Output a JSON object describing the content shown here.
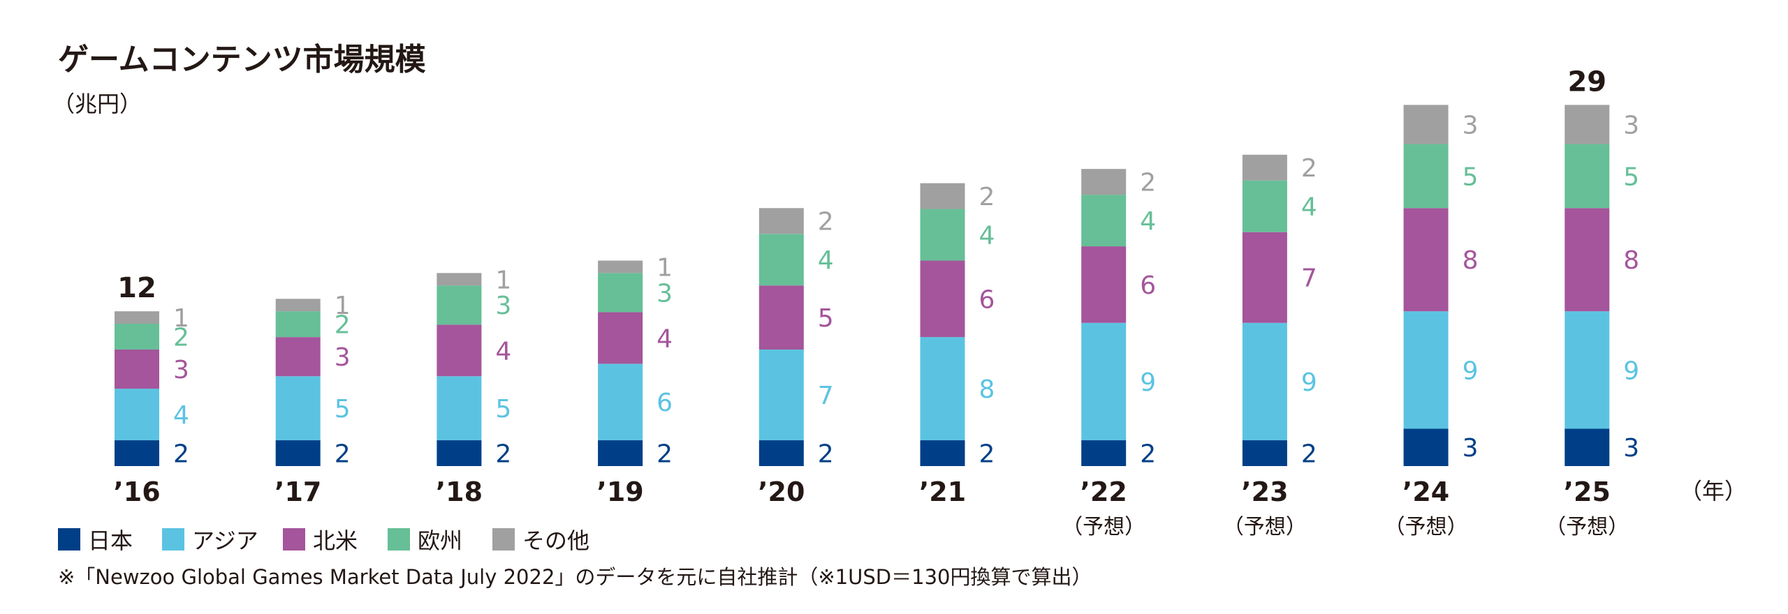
{
  "chart_data": {
    "type": "bar",
    "stacked": true,
    "title": "ゲームコンテンツ市場規模",
    "unit": "（兆円）",
    "x_unit": "（年）",
    "categories": [
      "’16",
      "’17",
      "’18",
      "’19",
      "’20",
      "’21",
      "’22",
      "’23",
      "’24",
      "’25"
    ],
    "forecast": [
      false,
      false,
      false,
      false,
      false,
      false,
      true,
      true,
      true,
      true
    ],
    "forecast_label": "（予想）",
    "totals": [
      {
        "index": 0,
        "label": "12"
      },
      {
        "index": 9,
        "label": "29"
      }
    ],
    "series": [
      {
        "name": "日本",
        "color": "#003f87",
        "values": [
          2,
          2,
          2,
          2,
          2,
          2,
          2,
          2,
          3,
          3
        ],
        "heights": [
          1.45,
          1.45,
          1.45,
          1.45,
          1.45,
          1.45,
          1.45,
          1.45,
          2.1,
          2.1
        ]
      },
      {
        "name": "アジア",
        "color": "#5bc3e1",
        "values": [
          4,
          5,
          5,
          6,
          7,
          8,
          9,
          9,
          9,
          9
        ],
        "heights": [
          2.9,
          3.6,
          3.6,
          4.3,
          5.1,
          5.8,
          6.6,
          6.6,
          6.6,
          6.6
        ]
      },
      {
        "name": "北米",
        "color": "#a4559b",
        "values": [
          3,
          3,
          4,
          4,
          5,
          6,
          6,
          7,
          8,
          8
        ],
        "heights": [
          2.2,
          2.2,
          2.9,
          2.9,
          3.6,
          4.3,
          4.3,
          5.1,
          5.8,
          5.8
        ]
      },
      {
        "name": "欧州",
        "color": "#66bf97",
        "values": [
          2,
          2,
          3,
          3,
          4,
          4,
          4,
          4,
          5,
          5
        ],
        "heights": [
          1.45,
          1.45,
          2.2,
          2.2,
          2.9,
          2.9,
          2.9,
          2.9,
          3.6,
          3.6
        ]
      },
      {
        "name": "その他",
        "color": "#a0a0a0",
        "values": [
          1,
          1,
          1,
          1,
          2,
          2,
          2,
          2,
          3,
          3
        ],
        "heights": [
          0.7,
          0.7,
          0.7,
          0.7,
          1.45,
          1.45,
          1.45,
          1.45,
          2.2,
          2.2
        ]
      }
    ],
    "note": "※「Newzoo Global Games Market Data July 2022」のデータを元に自社推計（※1USD＝130円換算で算出）"
  }
}
